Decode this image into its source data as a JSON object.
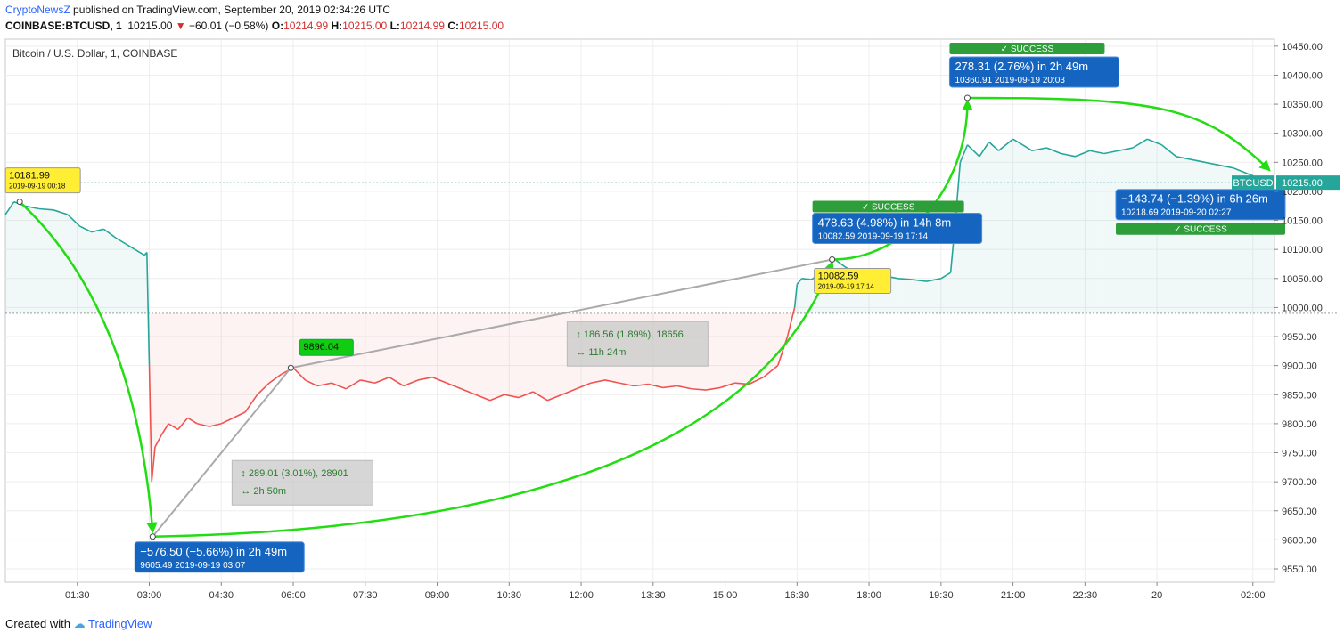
{
  "header": {
    "publisher": "CryptoNewsZ",
    "published_text": "published on TradingView.com, September 20, 2019 02:34:26 UTC",
    "symbol": "COINBASE:BTCUSD, 1",
    "last": "10215.00",
    "change": "−60.01 (−0.58%)",
    "o_label": "O:",
    "o_value": "10214.99",
    "h_label": "H:",
    "h_value": "10215.00",
    "l_label": "L:",
    "l_value": "10214.99",
    "c_label": "C:",
    "c_value": "10215.00"
  },
  "footer": {
    "created_with": "Created with",
    "brand": "TradingView"
  },
  "colors": {
    "up": "#26a69a",
    "down": "#ef5350",
    "arrow": "#22dd11",
    "callout": "#1565c0",
    "success": "#2e9e3a",
    "note": "#ffee33"
  },
  "chart_data": {
    "type": "line",
    "title": "Bitcoin / U.S. Dollar, 1, COINBASE",
    "x_unit": "hours since 2019-09-19 00:00",
    "xticks": [
      {
        "x": 1.5,
        "label": "01:30"
      },
      {
        "x": 3,
        "label": "03:00"
      },
      {
        "x": 4.5,
        "label": "04:30"
      },
      {
        "x": 6,
        "label": "06:00"
      },
      {
        "x": 7.5,
        "label": "07:30"
      },
      {
        "x": 9,
        "label": "09:00"
      },
      {
        "x": 10.5,
        "label": "10:30"
      },
      {
        "x": 12,
        "label": "12:00"
      },
      {
        "x": 13.5,
        "label": "13:30"
      },
      {
        "x": 15,
        "label": "15:00"
      },
      {
        "x": 16.5,
        "label": "16:30"
      },
      {
        "x": 18,
        "label": "18:00"
      },
      {
        "x": 19.5,
        "label": "19:30"
      },
      {
        "x": 21,
        "label": "21:00"
      },
      {
        "x": 22.5,
        "label": "22:30"
      },
      {
        "x": 24,
        "label": "20"
      },
      {
        "x": 26,
        "label": "02:00"
      }
    ],
    "yticks": [
      9550,
      9600,
      9650,
      9700,
      9750,
      9800,
      9850,
      9900,
      9950,
      10000,
      10050,
      10100,
      10150,
      10200,
      10250,
      10300,
      10350,
      10400,
      10450
    ],
    "xlim": [
      0,
      26.45
    ],
    "ylim": [
      9527,
      10462
    ],
    "last_price": 10215.0,
    "last_price_label": "BTCUSD",
    "last_price_text": "10215.00",
    "baseline": 9990,
    "series": [
      {
        "x": [
          0,
          0.18,
          0.4,
          0.7,
          1.0,
          1.3,
          1.55,
          1.8,
          2.05,
          2.3,
          2.5,
          2.7,
          2.9,
          2.95,
          3.0,
          3.05,
          3.12,
          3.25,
          3.4,
          3.6,
          3.8,
          4.0,
          4.25,
          4.5,
          4.75,
          5.0,
          5.25,
          5.5,
          5.75,
          6.0,
          6.25,
          6.5,
          6.8,
          7.1,
          7.4,
          7.7,
          8.0,
          8.3,
          8.6,
          8.9,
          9.2,
          9.5,
          9.8,
          10.1,
          10.4,
          10.7,
          11.0,
          11.3,
          11.6,
          11.9,
          12.2,
          12.5,
          12.8,
          13.1,
          13.4,
          13.7,
          14.0,
          14.3,
          14.6,
          14.9,
          15.2,
          15.5,
          15.8,
          16.1,
          16.3,
          16.45,
          16.5,
          16.6,
          16.8,
          17.0,
          17.29,
          17.5,
          17.7,
          18.0,
          18.3,
          18.6,
          18.9,
          19.2,
          19.5,
          19.7,
          19.8,
          19.85,
          19.9,
          20.05,
          20.3,
          20.5,
          20.7,
          21.0,
          21.2,
          21.4,
          21.7,
          22.0,
          22.3,
          22.6,
          22.9,
          23.2,
          23.5,
          23.8,
          24.1,
          24.4,
          24.7,
          25.0,
          25.3,
          25.6,
          25.9,
          26.2,
          26.45
        ],
        "y": [
          10160,
          10181.99,
          10175,
          10170,
          10168,
          10160,
          10140,
          10130,
          10135,
          10120,
          10110,
          10100,
          10090,
          10095,
          9900,
          9700,
          9760,
          9780,
          9800,
          9790,
          9810,
          9800,
          9795,
          9800,
          9810,
          9820,
          9850,
          9870,
          9885,
          9896.04,
          9875,
          9865,
          9870,
          9860,
          9875,
          9870,
          9880,
          9865,
          9875,
          9880,
          9870,
          9860,
          9850,
          9840,
          9850,
          9845,
          9855,
          9840,
          9850,
          9860,
          9870,
          9875,
          9870,
          9865,
          9868,
          9862,
          9865,
          9860,
          9858,
          9862,
          9870,
          9868,
          9880,
          9900,
          9950,
          10000,
          10040,
          10050,
          10048,
          10060,
          10082.59,
          10070,
          10060,
          10050,
          10055,
          10050,
          10048,
          10045,
          10050,
          10060,
          10150,
          10200,
          10250,
          10280,
          10260,
          10285,
          10270,
          10290,
          10280,
          10270,
          10275,
          10265,
          10260,
          10270,
          10265,
          10270,
          10275,
          10290,
          10280,
          10260,
          10255,
          10250,
          10245,
          10240,
          10230,
          10220,
          10215
        ]
      }
    ],
    "annotations": {
      "high_note": {
        "value": "10181.99",
        "date": "2019-09-19 00:18",
        "x": 0.3,
        "y": 10181.99
      },
      "low_note": {
        "x": 3.07,
        "y": 9605.49
      },
      "mid_note": {
        "value": "9896.04",
        "x": 5.95,
        "y": 9896.04
      },
      "peak_note": {
        "value": "10082.59",
        "date": "2019-09-19 17:14",
        "x": 17.23,
        "y": 10082.59
      },
      "top_point": {
        "x": 20.05,
        "y": 10360.91
      },
      "end_point": {
        "x": 26.45,
        "y": 10218.69
      },
      "callouts": [
        {
          "main": "−576.50 (−5.66%) in 2h 49m",
          "sub": "9605.49",
          "time": "2019-09-19  03:07"
        },
        {
          "main": "478.63 (4.98%) in 14h 8m",
          "sub": "10082.59",
          "time": "2019-09-19  17:14"
        },
        {
          "main": "278.31 (2.76%) in 2h 49m",
          "sub": "10360.91",
          "time": "2019-09-19  20:03"
        },
        {
          "main": "−143.74 (−1.39%) in 6h 26m",
          "sub": "10218.69",
          "time": "2019-09-20  02:27"
        }
      ],
      "success_label": "SUCCESS",
      "measures": [
        {
          "line1": "289.01 (3.01%), 28901",
          "line2": "2h 50m"
        },
        {
          "line1": "186.56 (1.89%), 18656",
          "line2": "11h 24m"
        }
      ]
    }
  }
}
